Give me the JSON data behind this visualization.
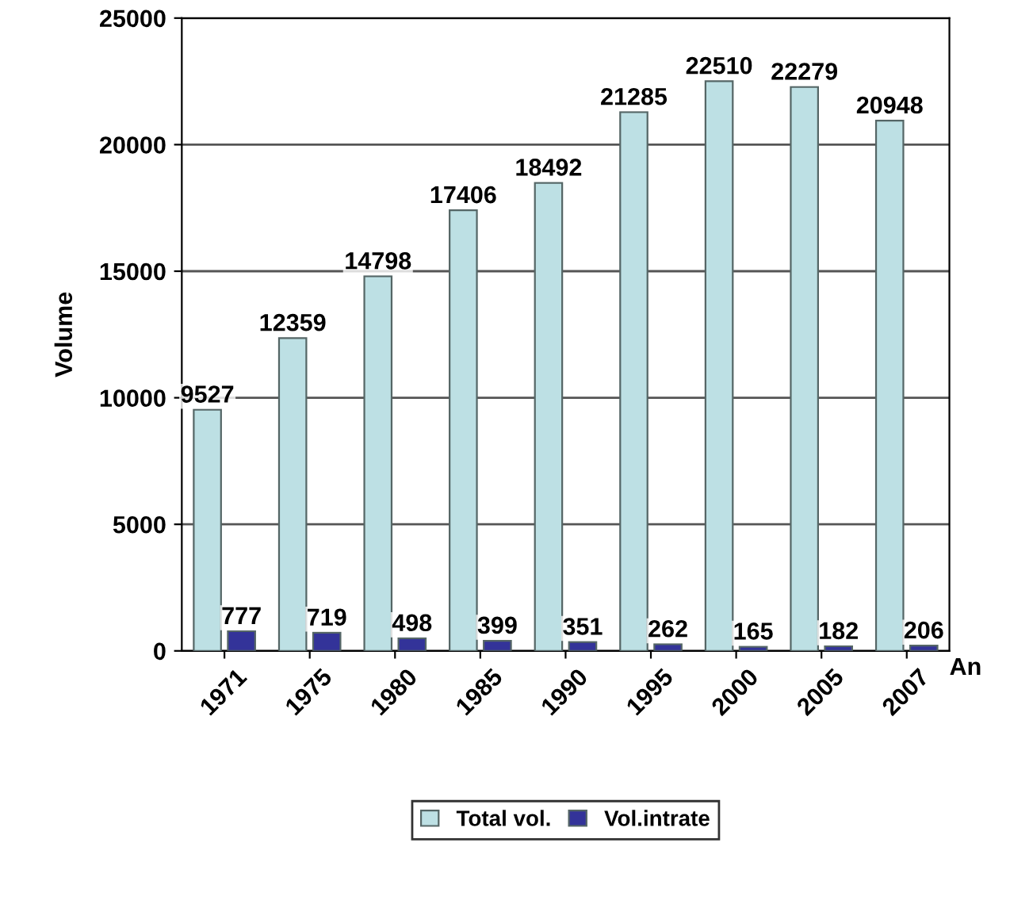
{
  "chart_data": {
    "type": "bar",
    "xlabel": "An",
    "ylabel": "Volume",
    "categories": [
      "1971",
      "1975",
      "1980",
      "1985",
      "1990",
      "1995",
      "2000",
      "2005",
      "2007"
    ],
    "series": [
      {
        "name": "Total vol.",
        "color": "#bde0e4",
        "values": [
          9527,
          12359,
          14798,
          17406,
          18492,
          21285,
          22510,
          22279,
          20948
        ]
      },
      {
        "name": "Vol.intrate",
        "color": "#333399",
        "values": [
          777,
          719,
          498,
          399,
          351,
          262,
          165,
          182,
          206
        ]
      }
    ],
    "ylim": [
      0,
      25000
    ],
    "yticks": [
      0,
      5000,
      10000,
      15000,
      20000,
      25000
    ],
    "grid": "y",
    "legend": "bottom",
    "data_labels": true
  }
}
